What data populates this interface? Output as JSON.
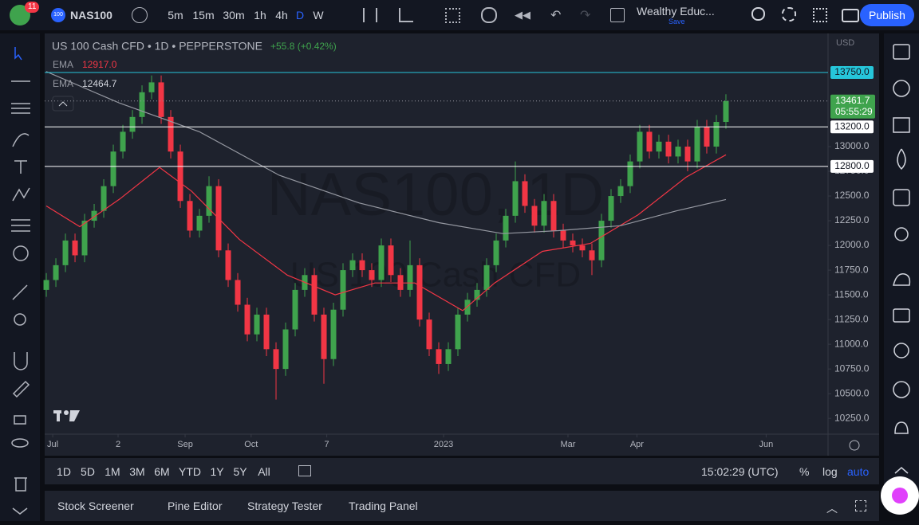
{
  "toolbar": {
    "badge": "11",
    "symbol_icon": "100",
    "symbol": "NAS100",
    "intervals": [
      "5m",
      "15m",
      "30m",
      "1h",
      "4h",
      "D",
      "W"
    ],
    "active_interval": "D",
    "layout_name": "Wealthy Educ...",
    "layout_status": "Save",
    "publish": "Publish"
  },
  "legend": {
    "title": "US 100 Cash CFD • 1D • PEPPERSTONE",
    "change": "+55.8 (+0.42%)"
  },
  "chart_data": {
    "type": "candlestick",
    "currency": "USD",
    "watermark": [
      "NAS100, 1D",
      "US 100 Cash CFD"
    ],
    "up_color": "#3fa34d",
    "down_color": "#f23645",
    "grid": false,
    "xlim": [
      -0.17,
      81.67
    ],
    "xticks": [
      {
        "value": 0.67,
        "label": "Jul"
      },
      {
        "value": 7.5,
        "label": "2"
      },
      {
        "value": 14.5,
        "label": "Sep"
      },
      {
        "value": 21.4,
        "label": "Oct"
      },
      {
        "value": 29.3,
        "label": "7"
      },
      {
        "value": 41.5,
        "label": "2023"
      },
      {
        "value": 54.5,
        "label": "Mar"
      },
      {
        "value": 61.7,
        "label": "Apr"
      },
      {
        "value": 75.2,
        "label": "Jun"
      }
    ],
    "ylim": [
      10090,
      14145
    ],
    "yticks": [
      {
        "value": 13000,
        "label": "13000.0"
      },
      {
        "value": 12750,
        "label": "12750.0"
      },
      {
        "value": 12500,
        "label": "12500.0"
      },
      {
        "value": 12250,
        "label": "12250.0"
      },
      {
        "value": 12000,
        "label": "12000.0"
      },
      {
        "value": 11750,
        "label": "11750.0"
      },
      {
        "value": 11500,
        "label": "11500.0"
      },
      {
        "value": 11250,
        "label": "11250.0"
      },
      {
        "value": 11000,
        "label": "11000.0"
      },
      {
        "value": 10750,
        "label": "10750.0"
      },
      {
        "value": 10500,
        "label": "10500.0"
      },
      {
        "value": 10250,
        "label": "10250.0"
      }
    ],
    "open": [
      11550,
      11650,
      11800,
      12050,
      11900,
      12250,
      12350,
      12600,
      12950,
      13150,
      13300,
      13550,
      13650,
      13300,
      12950,
      12450,
      12150,
      12300,
      12600,
      11950,
      11650,
      11400,
      11100,
      11300,
      10950,
      10750,
      11150,
      11550,
      11700,
      11300,
      10850,
      11350,
      11750,
      11850,
      11750,
      11650,
      12000,
      11700,
      11550,
      11800,
      11250,
      10950,
      10800,
      10950,
      11300,
      11450,
      11550,
      11800,
      12050,
      12300,
      12650,
      12400,
      12200,
      12450,
      12150,
      12050,
      12000,
      11950,
      11850,
      12250,
      12500,
      12600,
      12850,
      13150,
      12950,
      13050,
      12900,
      13000,
      12850,
      13200,
      13000,
      13250
    ],
    "high": [
      11720,
      11870,
      12120,
      12120,
      12320,
      12420,
      12670,
      13020,
      13220,
      13370,
      13620,
      13720,
      13720,
      13370,
      13020,
      12520,
      12370,
      12700,
      12670,
      12020,
      11720,
      11470,
      11370,
      11370,
      11020,
      11220,
      11620,
      11770,
      11770,
      11370,
      11420,
      11820,
      11920,
      11920,
      11820,
      12070,
      12070,
      11770,
      12050,
      11870,
      11320,
      11020,
      11020,
      11370,
      11520,
      11620,
      11870,
      12120,
      12370,
      12850,
      12720,
      12470,
      12520,
      12520,
      12220,
      12120,
      12070,
      12020,
      12320,
      12570,
      12670,
      12920,
      13220,
      13220,
      13120,
      13120,
      13070,
      13070,
      13270,
      13270,
      13320,
      13530
    ],
    "low": [
      11480,
      11580,
      11730,
      11830,
      11830,
      12180,
      12280,
      12530,
      12880,
      13080,
      13230,
      13480,
      13230,
      12880,
      12380,
      12080,
      12080,
      12230,
      11880,
      11580,
      11330,
      11030,
      11030,
      10880,
      10440,
      10680,
      11080,
      11480,
      11230,
      10600,
      10780,
      11280,
      11680,
      11680,
      11580,
      11580,
      11630,
      11480,
      11480,
      11180,
      10880,
      10700,
      10730,
      10880,
      11230,
      11380,
      11480,
      11730,
      11980,
      12230,
      12330,
      12130,
      12130,
      12080,
      11980,
      11930,
      11880,
      11700,
      11780,
      12180,
      12430,
      12530,
      12780,
      12880,
      12880,
      12830,
      12830,
      12750,
      12780,
      12930,
      12930,
      13180
    ],
    "close": [
      11650,
      11800,
      12050,
      11900,
      12250,
      12350,
      12600,
      12950,
      13150,
      13300,
      13550,
      13650,
      13300,
      12950,
      12450,
      12150,
      12300,
      12600,
      11950,
      11650,
      11400,
      11100,
      11300,
      10950,
      10750,
      11150,
      11550,
      11700,
      11300,
      10850,
      11350,
      11750,
      11850,
      11750,
      11650,
      12000,
      11700,
      11550,
      11800,
      11250,
      10950,
      10800,
      10950,
      11300,
      11450,
      11550,
      11800,
      12050,
      12300,
      12650,
      12400,
      12200,
      12450,
      12150,
      12050,
      12000,
      11950,
      11850,
      12250,
      12500,
      12600,
      12850,
      13150,
      12950,
      13050,
      12900,
      13000,
      12850,
      13200,
      13000,
      13250,
      13460
    ],
    "overlays": [
      {
        "name": "EMA",
        "value_label": "12917.0",
        "color": "#f23645",
        "x": [
          0,
          3.5,
          7.67,
          11.83,
          15.17,
          20.17,
          25.17,
          30.17,
          34.33,
          38.5,
          43.5,
          46.83,
          51.83,
          56.83,
          61.83,
          66.83,
          71
        ],
        "values": [
          12400,
          12190,
          12470,
          12790,
          12550,
          12060,
          11700,
          11500,
          11620,
          11620,
          11340,
          11620,
          11940,
          12020,
          12310,
          12690,
          12917
        ]
      },
      {
        "name": "EMA",
        "value_label": "12464.7",
        "color": "#9598a1",
        "x": [
          0,
          7.67,
          16,
          24.33,
          32.67,
          41,
          47.67,
          53.5,
          60,
          65.83,
          71
        ],
        "values": [
          13760,
          13440,
          13150,
          12710,
          12430,
          12230,
          12120,
          12150,
          12200,
          12350,
          12464.7
        ]
      }
    ],
    "levels": [
      {
        "value": 13750,
        "label": "13750.0",
        "color": "#26c6da"
      },
      {
        "value": 13200,
        "label": "13200.0",
        "color": "#ffffff"
      },
      {
        "value": 12800,
        "label": "12800.0",
        "color": "#ffffff"
      }
    ],
    "last": {
      "value": 13461.7,
      "label": "13461.7",
      "countdown": "05:55:29",
      "color": "#3fa34d"
    }
  },
  "range_bar": {
    "ranges": [
      "1D",
      "5D",
      "1M",
      "3M",
      "6M",
      "YTD",
      "1Y",
      "5Y",
      "All"
    ],
    "clock": "15:02:29 (UTC)",
    "percent": "%",
    "log": "log",
    "auto": "auto"
  },
  "panel": {
    "tabs": [
      "Stock Screener",
      "Pine Editor",
      "Strategy Tester",
      "Trading Panel"
    ]
  }
}
